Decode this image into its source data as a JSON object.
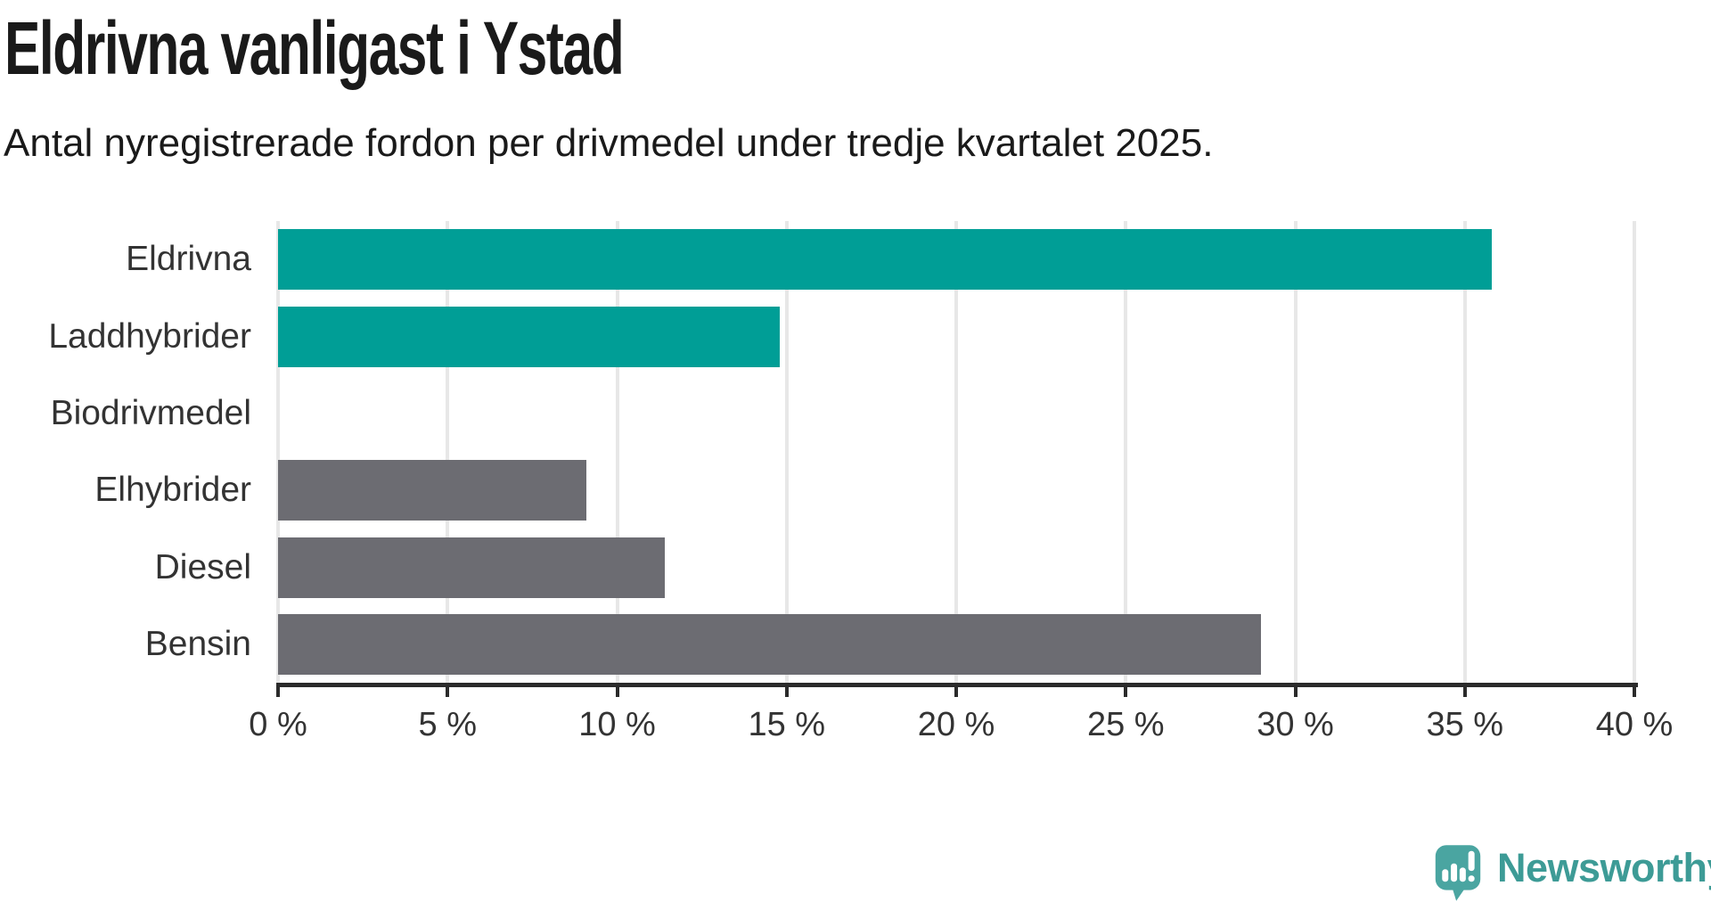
{
  "header": {
    "title": "Eldrivna vanligast i Ystad",
    "subtitle": "Antal nyregistrerade fordon per drivmedel under tredje kvartalet 2025."
  },
  "chart_data": {
    "type": "bar",
    "orientation": "horizontal",
    "title": "Eldrivna vanligast i Ystad",
    "subtitle": "Antal nyregistrerade fordon per drivmedel under tredje kvartalet 2025.",
    "categories": [
      "Eldrivna",
      "Laddhybrider",
      "Biodrivmedel",
      "Elhybrider",
      "Diesel",
      "Bensin"
    ],
    "values": [
      35.8,
      14.8,
      0,
      9.1,
      11.4,
      29.0
    ],
    "unit": "%",
    "xlim": [
      0,
      40
    ],
    "xticks": [
      0,
      5,
      10,
      15,
      20,
      25,
      30,
      35,
      40
    ],
    "xtick_labels": [
      "0 %",
      "5 %",
      "10 %",
      "15 %",
      "20 %",
      "25 %",
      "30 %",
      "35 %",
      "40 %"
    ],
    "bar_colors": [
      "#009e96",
      "#009e96",
      "#6c6c72",
      "#6c6c72",
      "#6c6c72",
      "#6c6c72"
    ],
    "grid": true,
    "legend": "none",
    "colors": {
      "highlight": "#009e96",
      "default": "#6c6c72",
      "gridline": "#e7e7e7",
      "axis": "#2b2b2b"
    }
  },
  "branding": {
    "logo_text": "Newsworthy",
    "logo_color": "#3d9b96",
    "icon_color": "#4aa5a1",
    "icon": "newsworthy-bubble-chart-icon"
  }
}
